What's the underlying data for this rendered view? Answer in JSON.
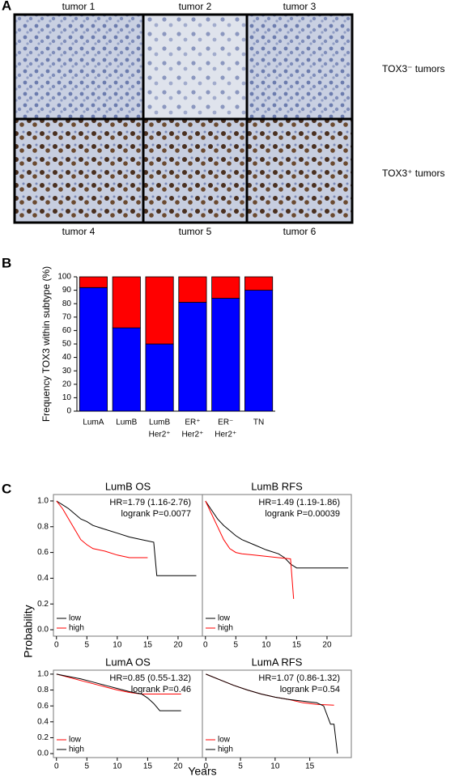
{
  "panel_labels": [
    "A",
    "B",
    "C"
  ],
  "panel_a": {
    "top_labels": [
      "tumor 1",
      "tumor 2",
      "tumor 3"
    ],
    "bottom_labels": [
      "tumor 4",
      "tumor 5",
      "tumor 6"
    ],
    "row_labels": [
      "TOX3⁻ tumors",
      "TOX3⁺ tumors"
    ]
  },
  "panel_c_axes": {
    "ylabel": "Probability",
    "xlabel": "Years"
  },
  "chart_data": [
    {
      "type": "bar",
      "stacked": true,
      "ylabel": "Frequency TOX3 within subtype (%)",
      "categories": [
        [
          "LumA"
        ],
        [
          "LumB"
        ],
        [
          "LumB",
          "Her2⁺"
        ],
        [
          "ER⁺",
          "Her2⁺"
        ],
        [
          "ER⁻",
          "Her2⁺"
        ],
        [
          "TN"
        ]
      ],
      "series": [
        {
          "color": "#0000ff",
          "values": [
            92,
            62,
            50,
            81,
            84,
            90
          ]
        },
        {
          "color": "#ff0000",
          "values": [
            8,
            38,
            50,
            19,
            16,
            10
          ]
        }
      ],
      "ylim": [
        0,
        100
      ],
      "yticks": [
        0,
        10,
        20,
        30,
        40,
        50,
        60,
        70,
        80,
        90,
        100
      ]
    },
    {
      "type": "km",
      "title": "LumB OS",
      "annotations": [
        "HR=1.79 (1.16-2.76)",
        "logrank P=0.0077"
      ],
      "series": [
        {
          "name": "low",
          "color": "#000000",
          "x": [
            0,
            1,
            2,
            3,
            4,
            5,
            6,
            8,
            10,
            12,
            14,
            16,
            16.5,
            23
          ],
          "values": [
            1,
            0.97,
            0.94,
            0.9,
            0.86,
            0.84,
            0.81,
            0.78,
            0.75,
            0.72,
            0.7,
            0.68,
            0.42,
            0.42
          ]
        },
        {
          "name": "high",
          "color": "#ff0000",
          "x": [
            0,
            1,
            2,
            3,
            4,
            5,
            6,
            8,
            10,
            12,
            15
          ],
          "values": [
            1,
            0.94,
            0.86,
            0.78,
            0.7,
            0.66,
            0.63,
            0.61,
            0.58,
            0.56,
            0.56
          ]
        }
      ],
      "xlim": [
        -0.5,
        24
      ],
      "ylim": [
        -0.05,
        1.05
      ],
      "xticks": [
        0,
        5,
        10,
        15,
        20
      ],
      "yticks": [
        {
          "value": 0,
          "label": "0.0"
        },
        {
          "value": 0.2,
          "label": "0.2"
        },
        {
          "value": 0.4,
          "label": "0.4"
        },
        {
          "value": 0.6,
          "label": "0.6"
        },
        {
          "value": 0.8,
          "label": "0.8"
        },
        {
          "value": 1,
          "label": "1.0"
        }
      ]
    },
    {
      "type": "km",
      "title": "LumB RFS",
      "annotations": [
        "HR=1.49 (1.19-1.86)",
        "logrank P=0.00039"
      ],
      "series": [
        {
          "name": "low",
          "color": "#000000",
          "x": [
            0,
            1,
            2,
            3,
            4,
            5,
            6,
            8,
            10,
            12,
            13,
            14,
            15,
            20,
            23.5
          ],
          "values": [
            1,
            0.93,
            0.86,
            0.81,
            0.77,
            0.73,
            0.7,
            0.66,
            0.62,
            0.59,
            0.56,
            0.51,
            0.48,
            0.48,
            0.48
          ]
        },
        {
          "name": "high",
          "color": "#ff0000",
          "x": [
            0,
            1,
            2,
            3,
            4,
            5,
            6,
            8,
            10,
            12,
            14,
            14.5
          ],
          "values": [
            1,
            0.9,
            0.8,
            0.7,
            0.63,
            0.6,
            0.59,
            0.58,
            0.57,
            0.56,
            0.55,
            0.24
          ]
        }
      ],
      "xlim": [
        -0.5,
        24
      ],
      "ylim": [
        -0.05,
        1.05
      ],
      "xticks": [
        0,
        5,
        10,
        15,
        20
      ]
    },
    {
      "type": "km",
      "title": "LumA OS",
      "annotations": [
        "HR=0.85 (0.55-1.32)",
        "logrank P=0.46"
      ],
      "series": [
        {
          "name": "low",
          "color": "#ff0000",
          "x": [
            0,
            2,
            4,
            6,
            8,
            10,
            12,
            14,
            16,
            18,
            20.5
          ],
          "values": [
            1,
            0.96,
            0.92,
            0.88,
            0.84,
            0.8,
            0.77,
            0.75,
            0.75,
            0.75,
            0.75
          ]
        },
        {
          "name": "high",
          "color": "#000000",
          "x": [
            0,
            2,
            4,
            6,
            8,
            10,
            12,
            14,
            15,
            16,
            17,
            20.5
          ],
          "values": [
            1,
            0.97,
            0.94,
            0.9,
            0.86,
            0.82,
            0.78,
            0.75,
            0.7,
            0.63,
            0.54,
            0.54
          ]
        }
      ],
      "xlim": [
        -0.5,
        24
      ],
      "ylim": [
        -0.05,
        1.05
      ],
      "xticks": [
        0,
        5,
        10,
        15,
        20
      ],
      "yticks": [
        {
          "value": 0,
          "label": "0.0"
        },
        {
          "value": 0.2,
          "label": "0.2"
        },
        {
          "value": 0.4,
          "label": "0.4"
        },
        {
          "value": 0.6,
          "label": "0.6"
        },
        {
          "value": 0.8,
          "label": "0.8"
        },
        {
          "value": 1,
          "label": "1.0"
        }
      ]
    },
    {
      "type": "km",
      "title": "LumA RFS",
      "annotations": [
        "HR=1.07 (0.86-1.32)",
        "logrank P=0.54"
      ],
      "series": [
        {
          "name": "low",
          "color": "#ff0000",
          "x": [
            0,
            2,
            4,
            6,
            8,
            10,
            12,
            14,
            16,
            18.5
          ],
          "values": [
            1,
            0.93,
            0.86,
            0.8,
            0.75,
            0.71,
            0.68,
            0.64,
            0.62,
            0.61
          ]
        },
        {
          "name": "high",
          "color": "#000000",
          "x": [
            0,
            2,
            4,
            6,
            8,
            10,
            12,
            14,
            16,
            17,
            18,
            18.5,
            19
          ],
          "values": [
            1,
            0.93,
            0.86,
            0.8,
            0.75,
            0.71,
            0.68,
            0.66,
            0.64,
            0.6,
            0.37,
            0.37,
            0
          ]
        }
      ],
      "xlim": [
        -0.5,
        21
      ],
      "ylim": [
        -0.05,
        1.05
      ],
      "xticks": [
        0,
        5,
        10,
        15
      ]
    }
  ]
}
